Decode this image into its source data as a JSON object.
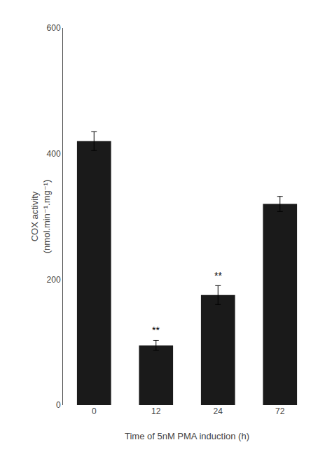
{
  "chart_data": {
    "type": "bar",
    "categories": [
      "0",
      "12",
      "24",
      "72"
    ],
    "values": [
      420,
      95,
      175,
      320
    ],
    "errors": [
      15,
      8,
      15,
      12
    ],
    "color": "#1a1a1a",
    "xlabel": "Time of 5nM PMA induction (h)",
    "ylabel": "COX activity\n(nmol.min⁻¹.mg⁻¹)",
    "ylim": [
      0,
      600
    ],
    "yticks": [
      0,
      200,
      400,
      600
    ],
    "grid": false,
    "annotations": [
      {
        "category": "12",
        "text": "**"
      },
      {
        "category": "24",
        "text": "**"
      }
    ]
  }
}
